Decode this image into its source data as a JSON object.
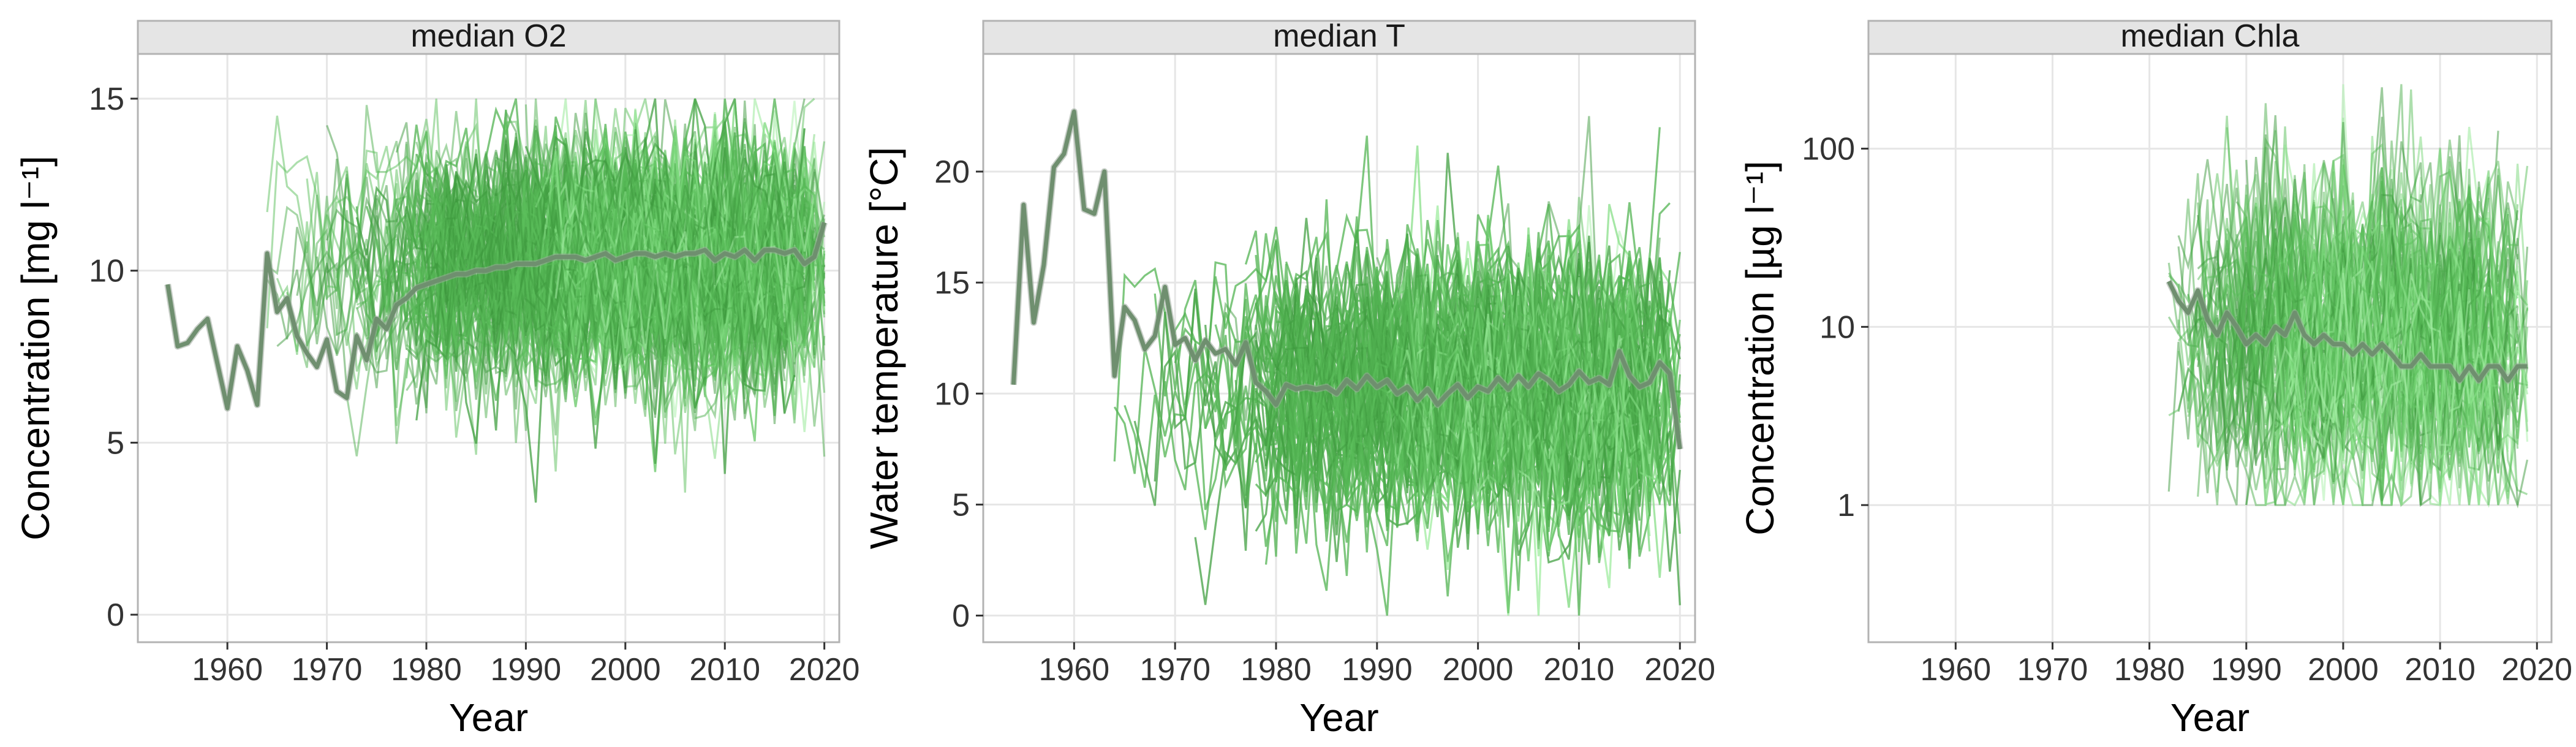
{
  "figure": {
    "note_colors": {
      "dark_green": "#3d9a3d",
      "mid_green": "#5cbf5c",
      "light_green": "#8fe88f",
      "median_line": "#6f8f6f",
      "strip_bg": "#e5e5e5",
      "grid": "#e6e6e6"
    }
  },
  "chart_data": [
    {
      "type": "line",
      "title": "median  O2",
      "xlabel": "Year",
      "ylabel": "Concentration [mg l⁻¹]",
      "xlim": [
        1951,
        2021.5
      ],
      "ylim": [
        -0.8,
        16.3
      ],
      "y_scale": "linear",
      "x_ticks": [
        1960,
        1970,
        1980,
        1990,
        2000,
        2010,
        2020
      ],
      "x_tick_labels": [
        "1960",
        "1970",
        "1980",
        "1990",
        "2000",
        "2010",
        "2020"
      ],
      "y_ticks": [
        0,
        5,
        10,
        15
      ],
      "y_tick_labels": [
        "0",
        "5",
        "10",
        "15"
      ],
      "grid": true,
      "legend": "none",
      "series": [
        {
          "role": "median",
          "x": [
            1954,
            1955,
            1956,
            1957,
            1958,
            1959,
            1960,
            1961,
            1962,
            1963,
            1964,
            1965,
            1966,
            1967,
            1968,
            1969,
            1970,
            1971,
            1972,
            1973,
            1974,
            1975,
            1976,
            1977,
            1978,
            1979,
            1980,
            1981,
            1982,
            1983,
            1984,
            1985,
            1986,
            1987,
            1988,
            1989,
            1990,
            1991,
            1992,
            1993,
            1994,
            1995,
            1996,
            1997,
            1998,
            1999,
            2000,
            2001,
            2002,
            2003,
            2004,
            2005,
            2006,
            2007,
            2008,
            2009,
            2010,
            2011,
            2012,
            2013,
            2014,
            2015,
            2016,
            2017,
            2018,
            2019,
            2020
          ],
          "y": [
            9.6,
            7.8,
            7.9,
            8.3,
            8.6,
            7.3,
            6.0,
            7.8,
            7.1,
            6.1,
            10.5,
            8.8,
            9.2,
            8.1,
            7.6,
            7.2,
            8.0,
            6.5,
            6.3,
            8.1,
            7.4,
            8.6,
            8.3,
            9.0,
            9.2,
            9.5,
            9.6,
            9.7,
            9.8,
            9.9,
            9.9,
            10.0,
            10.0,
            10.1,
            10.1,
            10.2,
            10.2,
            10.2,
            10.3,
            10.4,
            10.4,
            10.4,
            10.3,
            10.4,
            10.5,
            10.3,
            10.4,
            10.5,
            10.5,
            10.4,
            10.5,
            10.4,
            10.5,
            10.5,
            10.6,
            10.3,
            10.5,
            10.4,
            10.6,
            10.3,
            10.6,
            10.6,
            10.5,
            10.6,
            10.2,
            10.4,
            11.4
          ]
        }
      ],
      "ensemble": {
        "count_shown": "many",
        "x_start": 1964,
        "x_end": 2020,
        "center": 10.2,
        "spread": 1.9,
        "range_clip": [
          0,
          15
        ]
      }
    },
    {
      "type": "line",
      "title": "median  T",
      "xlabel": "Year",
      "ylabel": "Water temperature [°C]",
      "xlim": [
        1951,
        2021.5
      ],
      "ylim": [
        -1.2,
        25.3
      ],
      "y_scale": "linear",
      "x_ticks": [
        1960,
        1970,
        1980,
        1990,
        2000,
        2010,
        2020
      ],
      "x_tick_labels": [
        "1960",
        "1970",
        "1980",
        "1990",
        "2000",
        "2010",
        "2020"
      ],
      "y_ticks": [
        0,
        5,
        10,
        15,
        20
      ],
      "y_tick_labels": [
        "0",
        "5",
        "10",
        "15",
        "20"
      ],
      "grid": true,
      "legend": "none",
      "series": [
        {
          "role": "median",
          "x": [
            1954,
            1955,
            1956,
            1957,
            1958,
            1959,
            1960,
            1961,
            1962,
            1963,
            1964,
            1965,
            1966,
            1967,
            1968,
            1969,
            1970,
            1971,
            1972,
            1973,
            1974,
            1975,
            1976,
            1977,
            1978,
            1979,
            1980,
            1981,
            1982,
            1983,
            1984,
            1985,
            1986,
            1987,
            1988,
            1989,
            1990,
            1991,
            1992,
            1993,
            1994,
            1995,
            1996,
            1997,
            1998,
            1999,
            2000,
            2001,
            2002,
            2003,
            2004,
            2005,
            2006,
            2007,
            2008,
            2009,
            2010,
            2011,
            2012,
            2013,
            2014,
            2015,
            2016,
            2017,
            2018,
            2019,
            2020
          ],
          "y": [
            10.4,
            18.5,
            13.2,
            15.8,
            20.2,
            20.8,
            22.7,
            18.3,
            18.1,
            20.0,
            10.8,
            13.9,
            13.3,
            12.0,
            12.6,
            14.8,
            12.2,
            12.5,
            11.5,
            12.4,
            11.8,
            12.0,
            11.3,
            12.3,
            10.5,
            10.1,
            9.5,
            10.4,
            10.2,
            10.3,
            10.2,
            10.3,
            10.0,
            10.6,
            10.2,
            10.8,
            10.3,
            10.6,
            10.0,
            10.3,
            9.7,
            10.2,
            9.5,
            10.0,
            10.4,
            9.8,
            10.3,
            10.1,
            10.7,
            10.2,
            10.8,
            10.3,
            10.9,
            10.6,
            10.1,
            10.4,
            11.0,
            10.5,
            10.7,
            10.4,
            11.9,
            10.8,
            10.3,
            10.5,
            11.4,
            10.9,
            7.5
          ]
        }
      ],
      "ensemble": {
        "count_shown": "many",
        "x_start": 1964,
        "x_end": 2020,
        "center": 10.2,
        "spread": 3.3,
        "range_clip": [
          0,
          23.5
        ]
      }
    },
    {
      "type": "line",
      "title": "median  Chla",
      "xlabel": "Year",
      "ylabel": "Concentration [µg l⁻¹]",
      "xlim": [
        1951,
        2021.5
      ],
      "ylim": [
        0.17,
        340
      ],
      "y_scale": "log",
      "x_ticks": [
        1960,
        1970,
        1980,
        1990,
        2000,
        2010,
        2020
      ],
      "x_tick_labels": [
        "1960",
        "1970",
        "1980",
        "1990",
        "2000",
        "2010",
        "2020"
      ],
      "y_ticks": [
        1,
        10,
        100
      ],
      "y_tick_labels": [
        "1",
        "10",
        "100"
      ],
      "grid": true,
      "legend": "none",
      "series": [
        {
          "role": "median",
          "x": [
            1982,
            1983,
            1984,
            1985,
            1986,
            1987,
            1988,
            1989,
            1990,
            1991,
            1992,
            1993,
            1994,
            1995,
            1996,
            1997,
            1998,
            1999,
            2000,
            2001,
            2002,
            2003,
            2004,
            2005,
            2006,
            2007,
            2008,
            2009,
            2010,
            2011,
            2012,
            2013,
            2014,
            2015,
            2016,
            2017,
            2018,
            2019
          ],
          "y": [
            18,
            14,
            12,
            16,
            11,
            9,
            12,
            10,
            8,
            9,
            8,
            10,
            9,
            12,
            9,
            8,
            9,
            8,
            8,
            7,
            8,
            7,
            8,
            7,
            6,
            6,
            7,
            6,
            6,
            6,
            5,
            6,
            5,
            6,
            6,
            5,
            6,
            6
          ]
        }
      ],
      "ensemble": {
        "count_shown": "many",
        "x_start": 1982,
        "x_end": 2019,
        "center_log10": 0.9,
        "spread_log10": 0.45,
        "range_clip": [
          1,
          230
        ]
      }
    }
  ]
}
